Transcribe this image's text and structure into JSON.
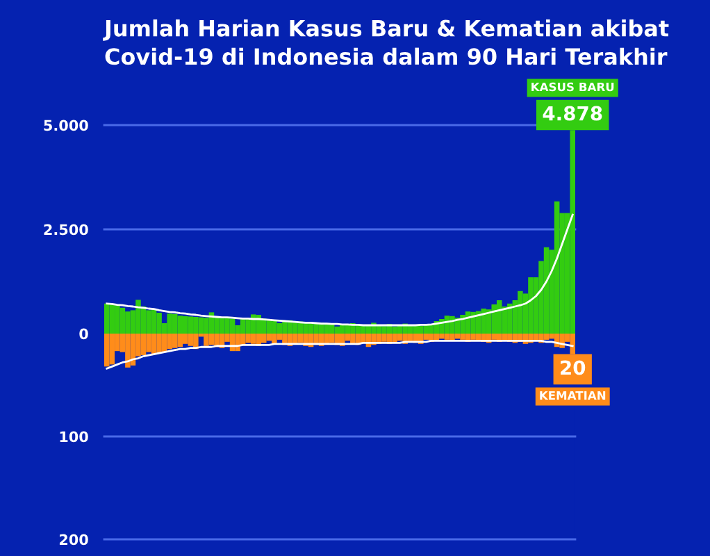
{
  "chart_data": [
    {
      "type": "bar",
      "title": "Jumlah Harian Kasus Baru & Kematian akibat\nCovid-19 di Indonesia dalam 90 Hari Terakhir",
      "categories": [
        null,
        null,
        null,
        null,
        null,
        null,
        null,
        null,
        null,
        null,
        null,
        null,
        null,
        null,
        null,
        null,
        null,
        null,
        null,
        null,
        null,
        null,
        null,
        null,
        null,
        null,
        null,
        null,
        null,
        null,
        null,
        null,
        null,
        null,
        null,
        null,
        null,
        null,
        null,
        null,
        null,
        null,
        null,
        null,
        null,
        null,
        null,
        null,
        null,
        null,
        null,
        null,
        null,
        null,
        null,
        null,
        null,
        null,
        null,
        null,
        null,
        null,
        null,
        null,
        null,
        null,
        null,
        null,
        null,
        null,
        null,
        null,
        null,
        null,
        null,
        null,
        null,
        null,
        null,
        null,
        null,
        null,
        null,
        null,
        null,
        null,
        null,
        null,
        null,
        null
      ],
      "ylim": [
        0,
        5000
      ],
      "yticks": [
        0,
        {
          "value": 2500,
          "label": "2.500"
        },
        {
          "value": 5000,
          "label": "5.000"
        }
      ],
      "ref_lines": [
        {
          "axis": "y",
          "value": 2500,
          "color": "#4a6ae8"
        },
        {
          "axis": "y",
          "value": 5000,
          "color": "#4a6ae8"
        }
      ],
      "tick_labels": "y",
      "series": [
        {
          "name": "KASUS BARU",
          "color": "#33cc11",
          "values": [
            720,
            700,
            680,
            620,
            530,
            560,
            810,
            650,
            560,
            600,
            500,
            250,
            480,
            470,
            430,
            420,
            410,
            400,
            390,
            380,
            510,
            390,
            370,
            380,
            360,
            200,
            350,
            360,
            460,
            450,
            360,
            340,
            330,
            250,
            300,
            320,
            280,
            290,
            260,
            250,
            250,
            260,
            230,
            240,
            170,
            220,
            210,
            250,
            200,
            210,
            190,
            260,
            200,
            180,
            230,
            170,
            190,
            240,
            200,
            210,
            190,
            230,
            220,
            300,
            350,
            430,
            420,
            380,
            450,
            530,
            520,
            540,
            600,
            580,
            700,
            800,
            650,
            720,
            800,
            1020,
            960,
            1350,
            1350,
            1740,
            2070,
            2010,
            3170,
            2890,
            2890,
            4878
          ],
          "value_labels": [
            null,
            null,
            null,
            null,
            null,
            null,
            null,
            null,
            null,
            null,
            null,
            null,
            null,
            null,
            null,
            null,
            null,
            null,
            null,
            null,
            null,
            null,
            null,
            null,
            null,
            null,
            null,
            null,
            null,
            null,
            null,
            null,
            null,
            null,
            null,
            null,
            null,
            null,
            null,
            null,
            null,
            null,
            null,
            null,
            null,
            null,
            null,
            null,
            null,
            null,
            null,
            null,
            null,
            null,
            null,
            null,
            null,
            null,
            null,
            null,
            null,
            null,
            null,
            null,
            null,
            null,
            null,
            null,
            null,
            null,
            null,
            null,
            null,
            null,
            null,
            null,
            null,
            null,
            null,
            null,
            null,
            null,
            null,
            null,
            null,
            null,
            null,
            null,
            null,
            "4.878"
          ]
        },
        {
          "type": "line",
          "color": "#ffffff",
          "values": [
            720,
            710,
            690,
            680,
            660,
            650,
            630,
            620,
            600,
            590,
            560,
            540,
            520,
            510,
            490,
            480,
            460,
            450,
            430,
            420,
            410,
            400,
            390,
            390,
            380,
            370,
            360,
            360,
            350,
            350,
            340,
            330,
            320,
            310,
            300,
            290,
            280,
            270,
            260,
            260,
            250,
            240,
            240,
            230,
            230,
            220,
            220,
            210,
            210,
            200,
            200,
            200,
            200,
            200,
            200,
            200,
            200,
            200,
            200,
            200,
            210,
            210,
            220,
            240,
            260,
            280,
            300,
            330,
            350,
            380,
            410,
            440,
            470,
            500,
            530,
            560,
            590,
            620,
            650,
            680,
            720,
            800,
            900,
            1050,
            1250,
            1500,
            1800,
            2150,
            2500,
            2850
          ]
        }
      ]
    },
    {
      "type": "bar",
      "categories": [
        null,
        null,
        null,
        null,
        null,
        null,
        null,
        null,
        null,
        null,
        null,
        null,
        null,
        null,
        null,
        null,
        null,
        null,
        null,
        null,
        null,
        null,
        null,
        null,
        null,
        null,
        null,
        null,
        null,
        null,
        null,
        null,
        null,
        null,
        null,
        null,
        null,
        null,
        null,
        null,
        null,
        null,
        null,
        null,
        null,
        null,
        null,
        null,
        null,
        null,
        null,
        null,
        null,
        null,
        null,
        null,
        null,
        null,
        null,
        null,
        null,
        null,
        null,
        null,
        null,
        null,
        null,
        null,
        null,
        null,
        null,
        null,
        null,
        null,
        null,
        null,
        null,
        null,
        null,
        null,
        null,
        null,
        null,
        null,
        null,
        null,
        null,
        null,
        null,
        null
      ],
      "ylim": [
        200,
        0
      ],
      "yticks": [
        100,
        200
      ],
      "ref_lines": [
        {
          "axis": "y",
          "value": 100,
          "color": "#4a6ae8"
        },
        {
          "axis": "y",
          "value": 200,
          "color": "#4a6ae8"
        }
      ],
      "tick_labels": "y",
      "series": [
        {
          "name": "KEMATIAN",
          "color": "#ff8c1a",
          "values": [
            32,
            30,
            17,
            18,
            33,
            31,
            22,
            21,
            18,
            20,
            19,
            18,
            15,
            14,
            13,
            10,
            12,
            15,
            3,
            12,
            11,
            13,
            14,
            8,
            17,
            17,
            11,
            9,
            10,
            12,
            9,
            7,
            10,
            6,
            11,
            12,
            10,
            9,
            12,
            13,
            11,
            12,
            10,
            9,
            11,
            12,
            7,
            10,
            11,
            9,
            13,
            11,
            10,
            8,
            10,
            9,
            7,
            10,
            8,
            9,
            10,
            6,
            8,
            7,
            5,
            6,
            7,
            5,
            6,
            8,
            6,
            7,
            8,
            9,
            6,
            8,
            7,
            8,
            9,
            8,
            10,
            9,
            7,
            9,
            6,
            5,
            13,
            14,
            8,
            20
          ],
          "value_labels": [
            null,
            null,
            null,
            null,
            null,
            null,
            null,
            null,
            null,
            null,
            null,
            null,
            null,
            null,
            null,
            null,
            null,
            null,
            null,
            null,
            null,
            null,
            null,
            null,
            null,
            null,
            null,
            null,
            null,
            null,
            null,
            null,
            null,
            null,
            null,
            null,
            null,
            null,
            null,
            null,
            null,
            null,
            null,
            null,
            null,
            null,
            null,
            null,
            null,
            null,
            null,
            null,
            null,
            null,
            null,
            null,
            null,
            null,
            null,
            null,
            null,
            null,
            null,
            null,
            null,
            null,
            null,
            null,
            null,
            null,
            null,
            null,
            null,
            null,
            null,
            null,
            null,
            null,
            null,
            null,
            null,
            null,
            null,
            null,
            null,
            null,
            null,
            null,
            null,
            "20"
          ]
        },
        {
          "type": "line",
          "color": "#ffffff",
          "values": [
            34,
            32,
            30,
            28,
            27,
            25,
            24,
            22,
            21,
            20,
            19,
            18,
            17,
            16,
            15,
            15,
            14,
            14,
            13,
            13,
            13,
            12,
            12,
            12,
            12,
            12,
            11,
            11,
            11,
            11,
            11,
            11,
            10,
            10,
            10,
            10,
            10,
            10,
            10,
            10,
            10,
            10,
            10,
            10,
            10,
            10,
            10,
            10,
            10,
            9,
            9,
            9,
            9,
            9,
            9,
            9,
            9,
            8,
            8,
            8,
            8,
            8,
            7,
            7,
            7,
            7,
            7,
            7,
            7,
            7,
            7,
            7,
            7,
            7,
            7,
            7,
            7,
            7,
            7,
            7,
            7,
            7,
            7,
            7,
            8,
            8,
            9,
            10,
            11,
            12
          ]
        }
      ]
    }
  ]
}
